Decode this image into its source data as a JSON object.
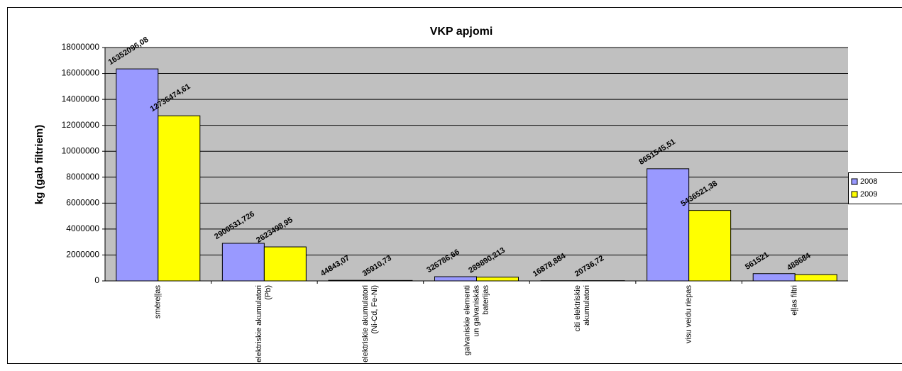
{
  "chart_data": {
    "type": "bar",
    "title": "VKP apjomi",
    "y_label": "kg (gab filtriem)",
    "categories": [
      "smēreļļas",
      "elektriskie akumulatori (Pb)",
      "elektriskie akumulatori (Ni-Cd, Fe-Ni)",
      "galvaniskie elementi un galvaniskās baterijas",
      "citi elektriskie akumulatori",
      "visu veidu riepas",
      "eļļas filtri"
    ],
    "series": [
      {
        "name": "2008",
        "color": "#9999ff",
        "values": [
          16352096.08,
          2900531.726,
          44843.07,
          326786.66,
          16878.884,
          8651545.51,
          561521
        ],
        "value_labels": [
          "16352096,08",
          "2900531,726",
          "44843,07",
          "326786,66",
          "16878,884",
          "8651545,51",
          "561521"
        ]
      },
      {
        "name": "2009",
        "color": "#ffff00",
        "values": [
          12736474.61,
          2623498.95,
          35910.73,
          289890.213,
          20736.72,
          5436521.38,
          488684
        ],
        "value_labels": [
          "12736474,61",
          "2623498,95",
          "35910,73",
          "289890,213",
          "20736,72",
          "5436521,38",
          "488684"
        ]
      }
    ],
    "ylim": [
      0,
      18000000
    ],
    "yticks": [
      0,
      2000000,
      4000000,
      6000000,
      8000000,
      10000000,
      12000000,
      14000000,
      16000000,
      18000000
    ],
    "grid": true,
    "legend": "right"
  }
}
